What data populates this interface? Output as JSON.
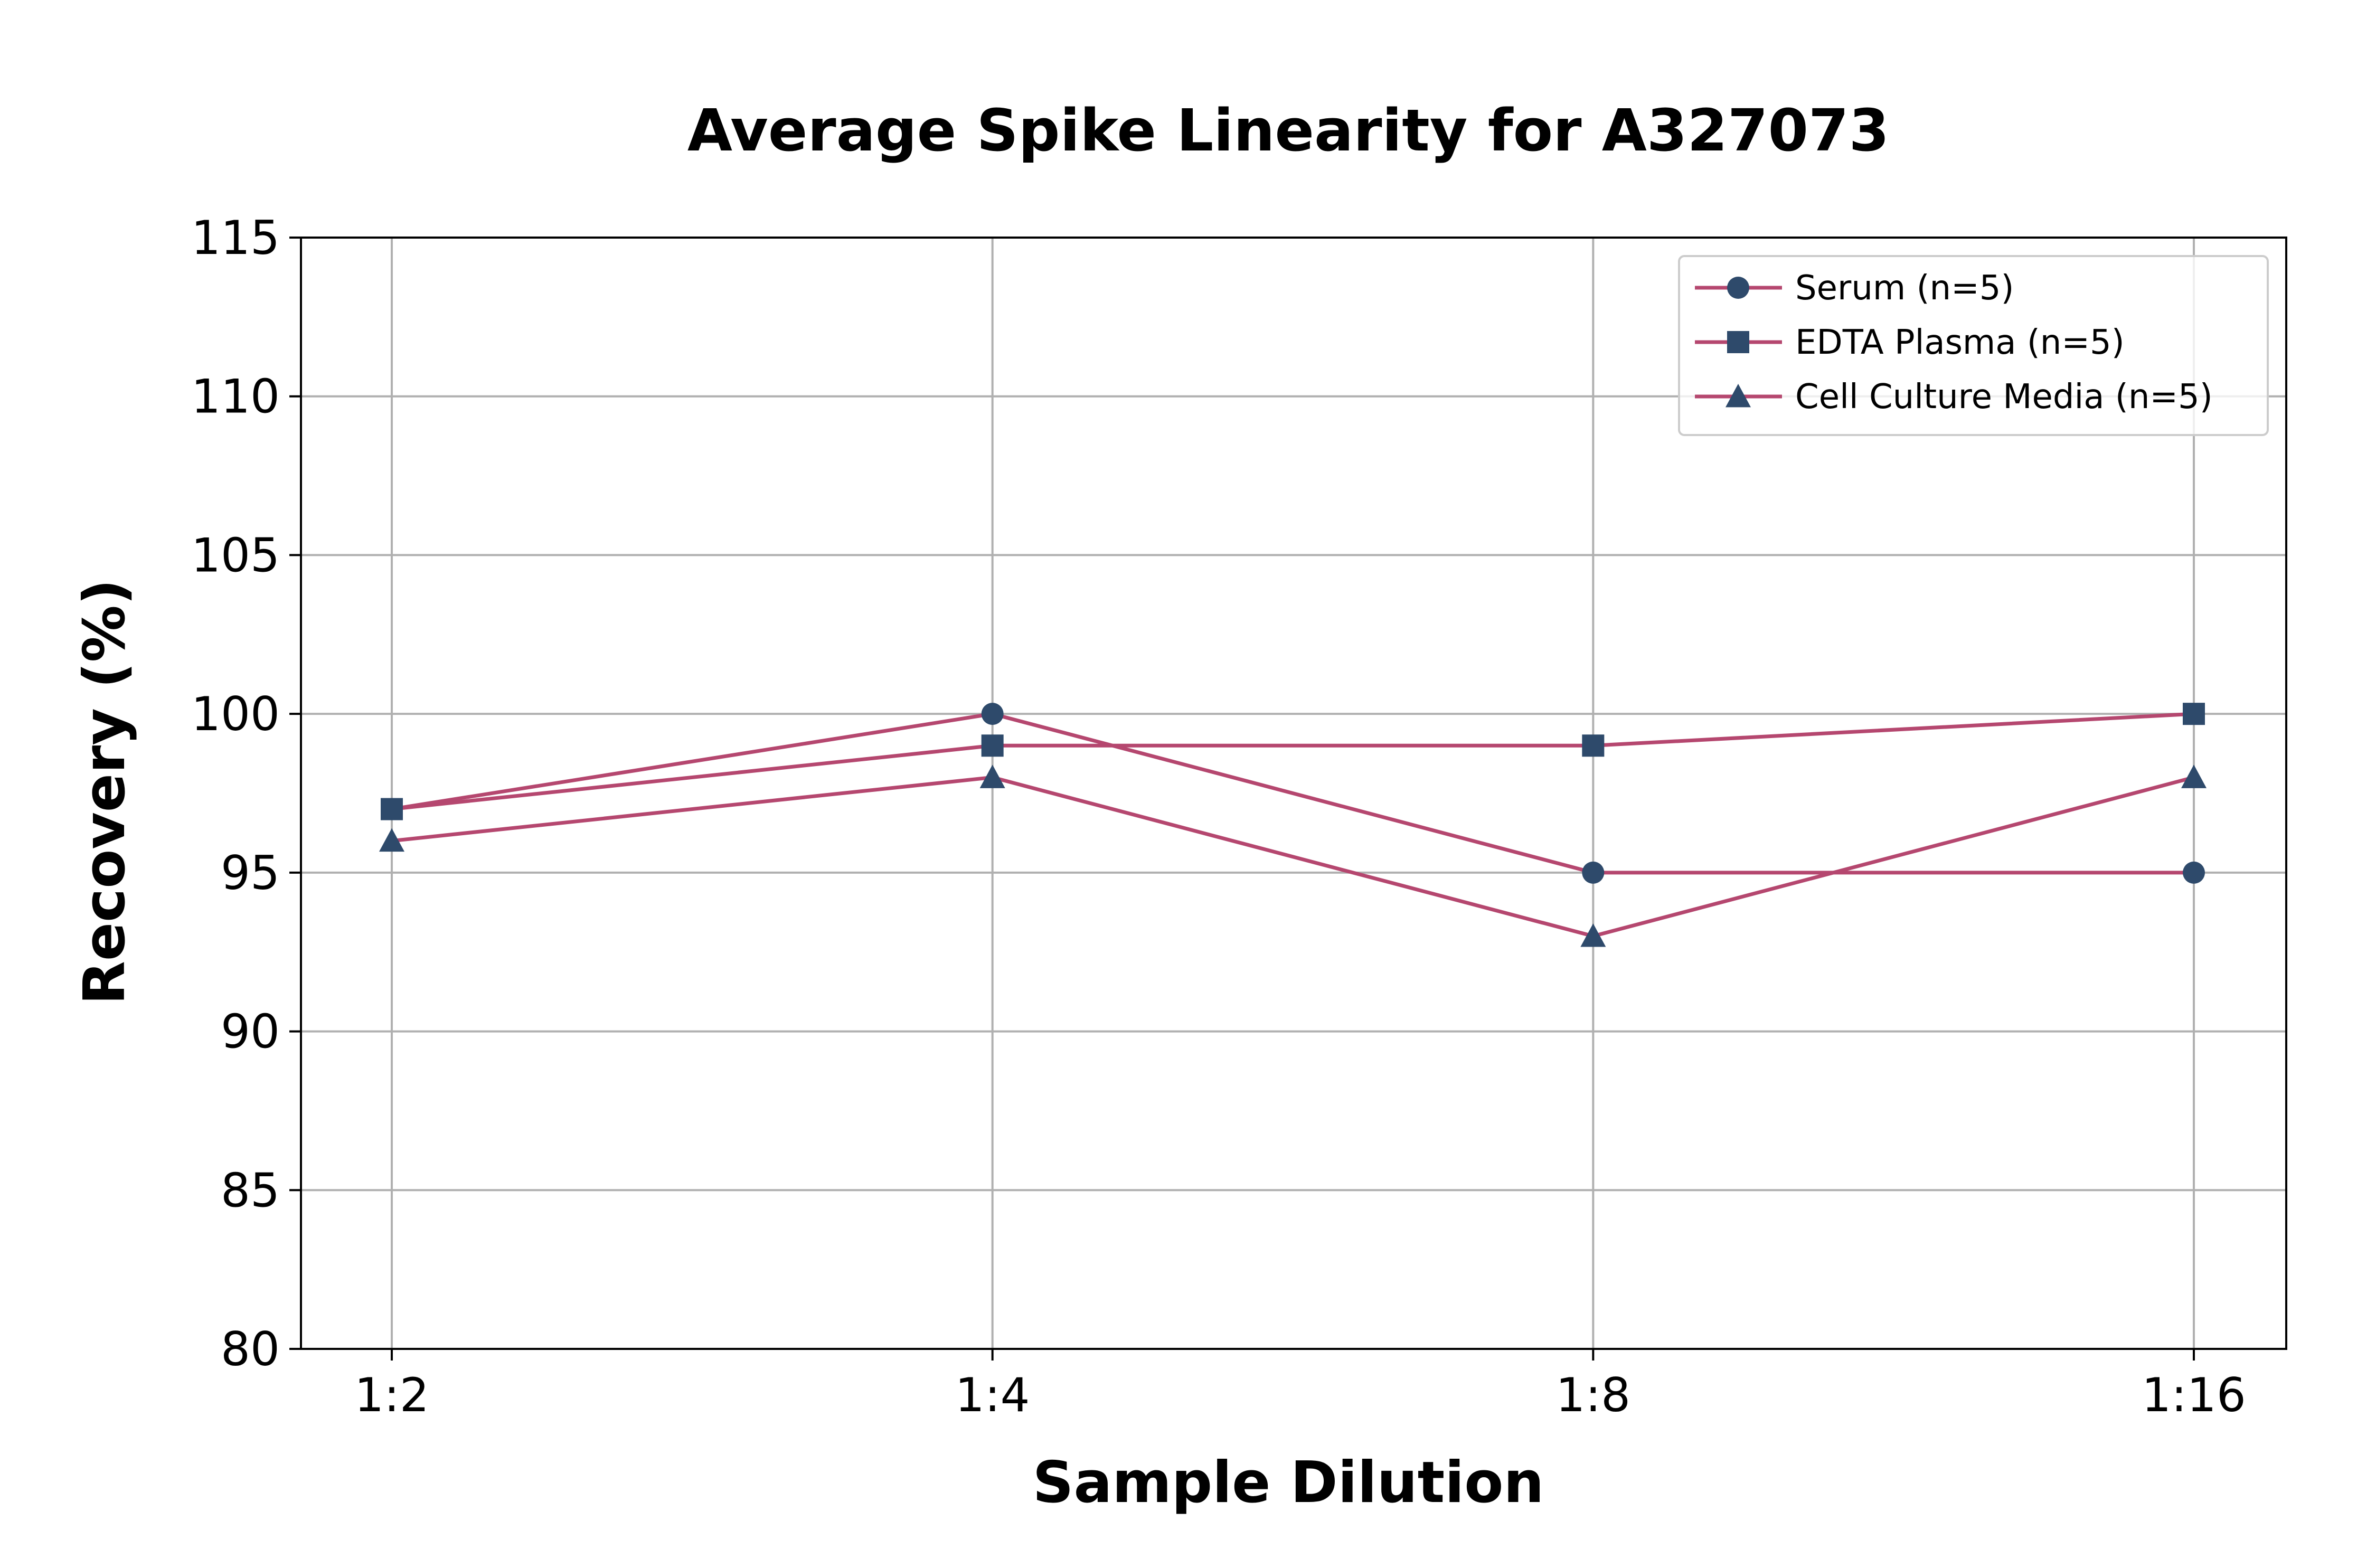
{
  "chart_data": {
    "type": "line",
    "title": "Average Spike Linearity for A327073",
    "xlabel": "Sample Dilution",
    "ylabel": "Recovery (%)",
    "categories": [
      "1:2",
      "1:4",
      "1:8",
      "1:16"
    ],
    "ylim": [
      80,
      115
    ],
    "yticks": [
      80,
      85,
      90,
      95,
      100,
      105,
      110,
      115
    ],
    "grid": true,
    "legend_position": "top-right",
    "line_color": "#b5476f",
    "marker_color": "#2e4a6b",
    "series": [
      {
        "name": "Serum (n=5)",
        "marker": "circle",
        "values": [
          97,
          100,
          95,
          95
        ]
      },
      {
        "name": "EDTA Plasma (n=5)",
        "marker": "square",
        "values": [
          97,
          99,
          99,
          100
        ]
      },
      {
        "name": "Cell Culture Media (n=5)",
        "marker": "triangle",
        "values": [
          96,
          98,
          93,
          98
        ]
      }
    ]
  }
}
